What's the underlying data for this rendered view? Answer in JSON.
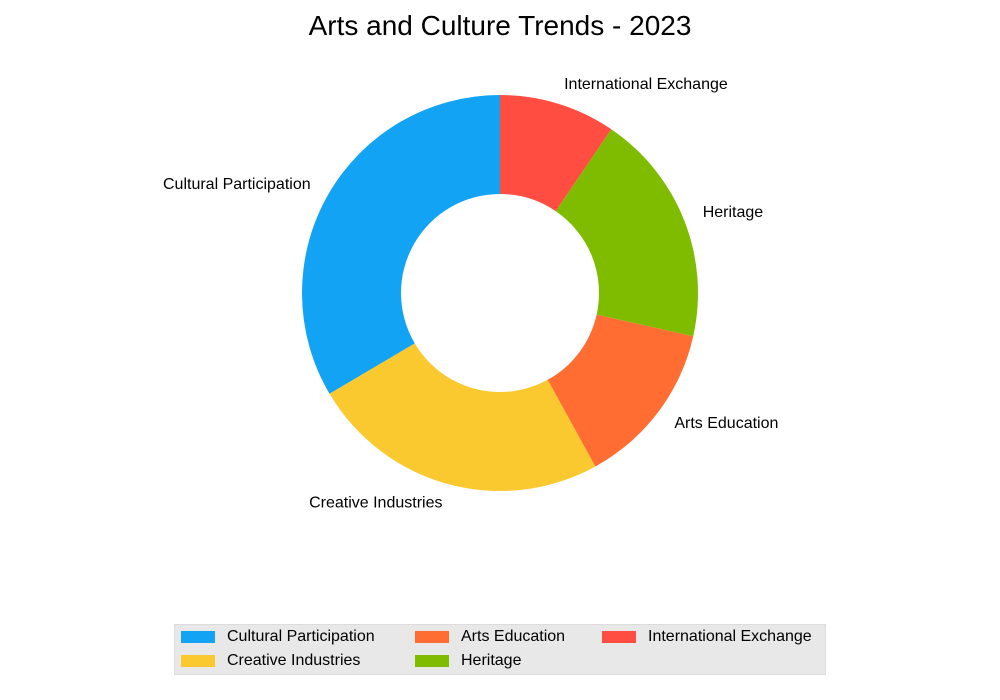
{
  "chart_data": {
    "type": "pie",
    "title": "Arts and Culture Trends - 2023",
    "donut": true,
    "categories": [
      "Cultural Participation",
      "Creative Industries",
      "Arts Education",
      "Heritage",
      "International Exchange"
    ],
    "values": [
      33.5,
      24.5,
      13.5,
      19,
      9.5
    ],
    "colors": [
      "#12a3f4",
      "#fac92f",
      "#ff6d33",
      "#7fbc00",
      "#ff4d42"
    ],
    "legend": {
      "placement": "bottom",
      "columns": 3,
      "entries": [
        "Cultural Participation",
        "Creative Industries",
        "Arts Education",
        "Heritage",
        "International Exchange"
      ]
    }
  }
}
